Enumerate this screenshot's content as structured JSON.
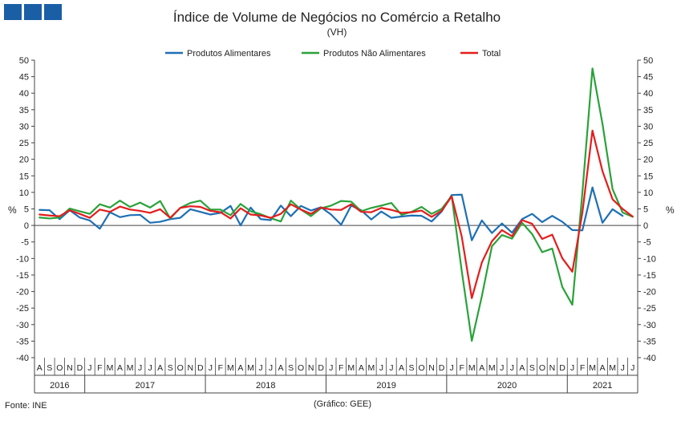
{
  "brand": {
    "color": "#1a5fa6"
  },
  "chart_data": {
    "type": "line",
    "title": "Índice de Volume de Negócios no Comércio a Retalho",
    "subtitle": "(VH)",
    "ylabel_left": "%",
    "ylabel_right": "%",
    "ylim": [
      -40,
      50
    ],
    "yticks": [
      50,
      45,
      40,
      35,
      30,
      25,
      20,
      15,
      10,
      5,
      0,
      -5,
      -10,
      -15,
      -20,
      -25,
      -30,
      -35,
      -40
    ],
    "grid": false,
    "legend_position": "top",
    "months": [
      "A",
      "S",
      "O",
      "N",
      "D",
      "J",
      "F",
      "M",
      "A",
      "M",
      "J",
      "J",
      "A",
      "S",
      "O",
      "N",
      "D",
      "J",
      "F",
      "M",
      "A",
      "M",
      "J",
      "J",
      "A",
      "S",
      "O",
      "N",
      "D",
      "J",
      "F",
      "M",
      "A",
      "M",
      "J",
      "J",
      "A",
      "S",
      "O",
      "N",
      "D",
      "J",
      "F",
      "M",
      "A",
      "M",
      "J",
      "J",
      "A",
      "S",
      "O",
      "N",
      "D",
      "J",
      "F",
      "M",
      "A",
      "M",
      "J",
      "J"
    ],
    "years": [
      {
        "label": "2016",
        "start": 0,
        "count": 5
      },
      {
        "label": "2017",
        "start": 5,
        "count": 12
      },
      {
        "label": "2018",
        "start": 17,
        "count": 12
      },
      {
        "label": "2019",
        "start": 29,
        "count": 12
      },
      {
        "label": "2020",
        "start": 41,
        "count": 12
      },
      {
        "label": "2021",
        "start": 53,
        "count": 7
      }
    ],
    "series": [
      {
        "name": "Produtos Alimentares",
        "color": "#1f6fb4",
        "values": [
          4.7,
          4.6,
          1.9,
          4.6,
          2.4,
          1.5,
          -1.0,
          4.0,
          2.5,
          3.1,
          3.2,
          0.8,
          1.1,
          1.9,
          2.3,
          4.9,
          4.1,
          3.3,
          3.8,
          5.9,
          0.0,
          5.4,
          1.9,
          1.6,
          6.0,
          2.8,
          5.9,
          4.5,
          5.5,
          3.3,
          0.2,
          6.0,
          4.6,
          1.8,
          4.2,
          2.3,
          2.7,
          3.0,
          2.9,
          1.2,
          4.2,
          9.2,
          9.3,
          -4.5,
          1.5,
          -2.3,
          0.6,
          -2.2,
          1.9,
          3.5,
          1.0,
          2.9,
          1.1,
          -1.4,
          -1.5,
          11.5,
          0.8,
          4.9,
          2.9,
          null
        ]
      },
      {
        "name": "Produtos Não Alimentares",
        "color": "#2aa23a",
        "values": [
          2.4,
          2.1,
          2.4,
          5.1,
          4.3,
          3.5,
          6.4,
          5.4,
          7.5,
          5.6,
          6.9,
          5.4,
          7.4,
          2.1,
          5.3,
          6.8,
          7.5,
          4.8,
          4.8,
          3.1,
          6.5,
          4.3,
          3.4,
          2.2,
          1.2,
          7.5,
          4.8,
          2.8,
          5.2,
          6.0,
          7.4,
          7.2,
          4.3,
          5.3,
          6.0,
          6.8,
          3.2,
          4.1,
          5.6,
          3.5,
          5.0,
          8.9,
          -13.8,
          -34.9,
          -21.4,
          -6.3,
          -2.9,
          -4.0,
          0.8,
          -2.6,
          -8.1,
          -7.0,
          -18.6,
          -24.0,
          10.0,
          47.5,
          30.7,
          11.0,
          3.9,
          2.6
        ]
      },
      {
        "name": "Total",
        "color": "#e41d1d",
        "values": [
          3.3,
          3.0,
          2.8,
          4.6,
          3.5,
          2.3,
          4.8,
          4.1,
          5.7,
          4.8,
          4.4,
          3.8,
          4.9,
          2.3,
          5.3,
          5.8,
          5.6,
          4.4,
          4.0,
          2.1,
          5.2,
          3.3,
          3.0,
          2.3,
          3.5,
          6.4,
          4.8,
          3.5,
          5.4,
          4.8,
          4.7,
          6.4,
          4.1,
          4.0,
          5.3,
          4.7,
          3.8,
          4.0,
          4.5,
          2.6,
          4.4,
          8.8,
          -3.4,
          -22.0,
          -11.2,
          -4.8,
          -1.4,
          -3.3,
          1.6,
          0.5,
          -4.1,
          -2.8,
          -9.9,
          -14.0,
          3.9,
          28.7,
          16.4,
          7.9,
          5.0,
          2.7
        ]
      }
    ]
  },
  "footer": {
    "source": "Fonte: INE",
    "credit": "(Gráfico: GEE)"
  }
}
